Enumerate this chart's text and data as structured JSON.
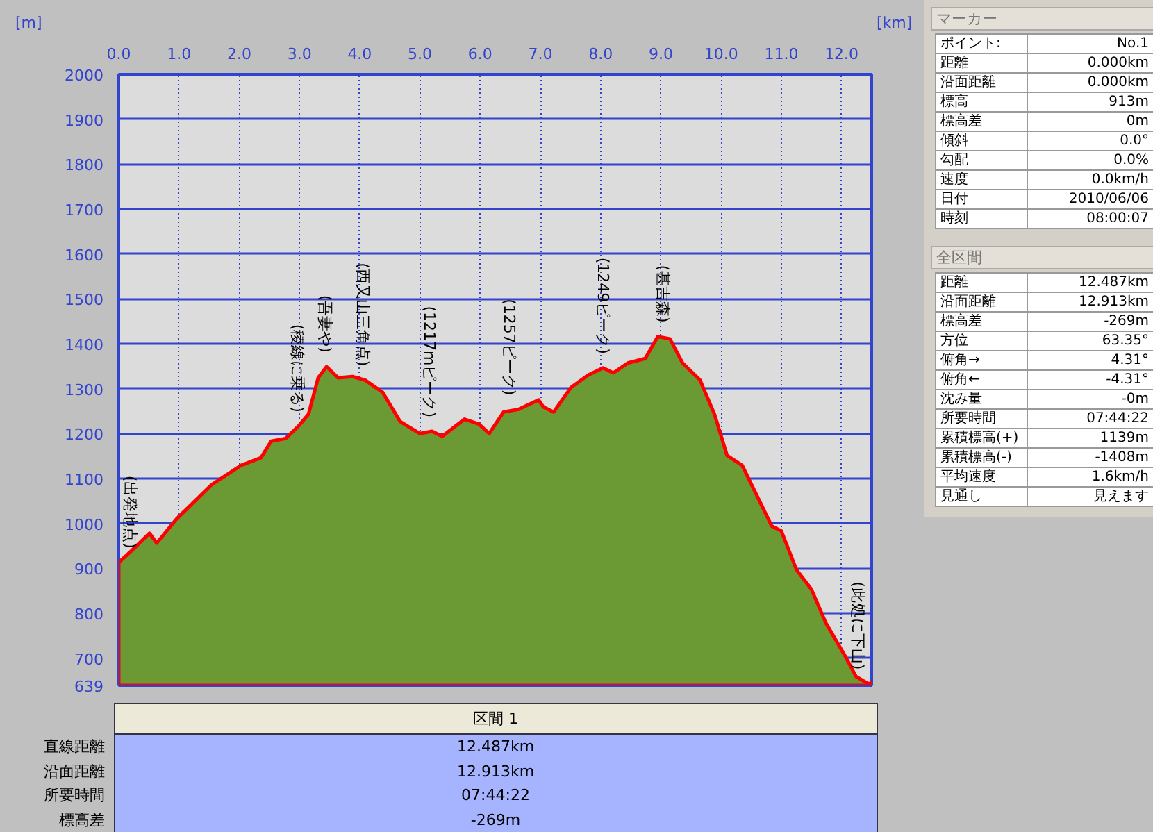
{
  "chart_data": [
    {
      "type": "area",
      "xlabel": "[km]",
      "ylabel": "[m]",
      "xlim": [
        0,
        12.5
      ],
      "ylim": [
        639,
        2000
      ],
      "xticks": [
        {
          "value": 0,
          "label": "0.0"
        },
        {
          "value": 1,
          "label": "1.0"
        },
        {
          "value": 2,
          "label": "2.0"
        },
        {
          "value": 3,
          "label": "3.0"
        },
        {
          "value": 4,
          "label": "4.0"
        },
        {
          "value": 5,
          "label": "5.0"
        },
        {
          "value": 6,
          "label": "6.0"
        },
        {
          "value": 7,
          "label": "7.0"
        },
        {
          "value": 8,
          "label": "8.0"
        },
        {
          "value": 9,
          "label": "9.0"
        },
        {
          "value": 10,
          "label": "10.0"
        },
        {
          "value": 11,
          "label": "11.0"
        },
        {
          "value": 12,
          "label": "12.0"
        }
      ],
      "yticks": [
        639,
        700,
        800,
        900,
        1000,
        1100,
        1200,
        1300,
        1400,
        1500,
        1600,
        1700,
        1800,
        1900,
        2000
      ],
      "grid": true,
      "x": [
        0,
        0.22,
        0.51,
        0.63,
        0.96,
        1.54,
        2.03,
        2.36,
        2.53,
        2.77,
        2.98,
        3.15,
        3.31,
        3.45,
        3.64,
        3.88,
        4.09,
        4.38,
        4.67,
        5.0,
        5.2,
        5.37,
        5.74,
        5.98,
        6.15,
        6.39,
        6.64,
        6.97,
        7.05,
        7.22,
        7.51,
        7.79,
        8.04,
        8.21,
        8.45,
        8.74,
        8.95,
        9.15,
        9.36,
        9.65,
        9.89,
        10.1,
        10.35,
        10.84,
        11.0,
        11.25,
        11.5,
        11.74,
        12.07,
        12.24,
        12.44,
        12.49
      ],
      "series": [
        {
          "color": "#6b9a35",
          "values": [
            913,
            940,
            978,
            956,
            1010,
            1086,
            1129,
            1146,
            1183,
            1189,
            1216,
            1243,
            1324,
            1349,
            1324,
            1327,
            1319,
            1292,
            1227,
            1200,
            1205,
            1194,
            1232,
            1221,
            1200,
            1248,
            1254,
            1275,
            1259,
            1248,
            1303,
            1330,
            1346,
            1335,
            1357,
            1367,
            1416,
            1411,
            1357,
            1319,
            1243,
            1151,
            1129,
            994,
            983,
            897,
            853,
            778,
            702,
            659,
            643,
            644
          ]
        }
      ],
      "annotations": [
        {
          "text": "(出発地点)",
          "x": 0,
          "y": 913
        },
        {
          "text": "(稜線に乗る)",
          "x": 2.96,
          "y": 1216
        },
        {
          "text": "(吾妻や)",
          "x": 3.43,
          "y": 1349
        },
        {
          "text": "(西又山三角点)",
          "x": 4.05,
          "y": 1319
        },
        {
          "text": "(1217mピーク)",
          "x": 5.16,
          "y": 1205
        },
        {
          "text": "(1257ピーク)",
          "x": 6.48,
          "y": 1254
        },
        {
          "text": "(1249ピーク)",
          "x": 8.04,
          "y": 1346
        },
        {
          "text": "(甚吉森)",
          "x": 9.03,
          "y": 1416
        },
        {
          "text": "(此処に下山)",
          "x": 12.45,
          "y": 643
        }
      ]
    },
    {
      "type": "other",
      "title": "区間 1",
      "annotations": [
        "直線距離",
        "12.487km",
        "沿面距離",
        "12.913km",
        "所要時間",
        "07:44:22",
        "標高差",
        "-269m"
      ]
    },
    {
      "type": "other",
      "title": "マーカー",
      "annotations": [
        "ポイント:",
        "No.1",
        "距離",
        "0.000km",
        "沿面距離",
        "0.000km",
        "標高",
        "913m",
        "標高差",
        "0m",
        "傾斜",
        "0.0°",
        "勾配",
        "0.0%",
        "速度",
        "0.0km/h",
        "日付",
        "2010/06/06",
        "時刻",
        "08:00:07"
      ]
    },
    {
      "type": "other",
      "title": "全区間",
      "annotations": [
        "距離",
        "12.487km",
        "沿面距離",
        "12.913km",
        "標高差",
        "-269m",
        "方位",
        "63.35°",
        "俯角→",
        "4.31°",
        "俯角←",
        "-4.31°",
        "沈み量",
        "-0m",
        "所要時間",
        "07:44:22",
        "累積標高(+)",
        "1139m",
        "累積標高(-)",
        "-1408m",
        "平均速度",
        "1.6km/h",
        "見通し",
        "見えます"
      ]
    }
  ]
}
